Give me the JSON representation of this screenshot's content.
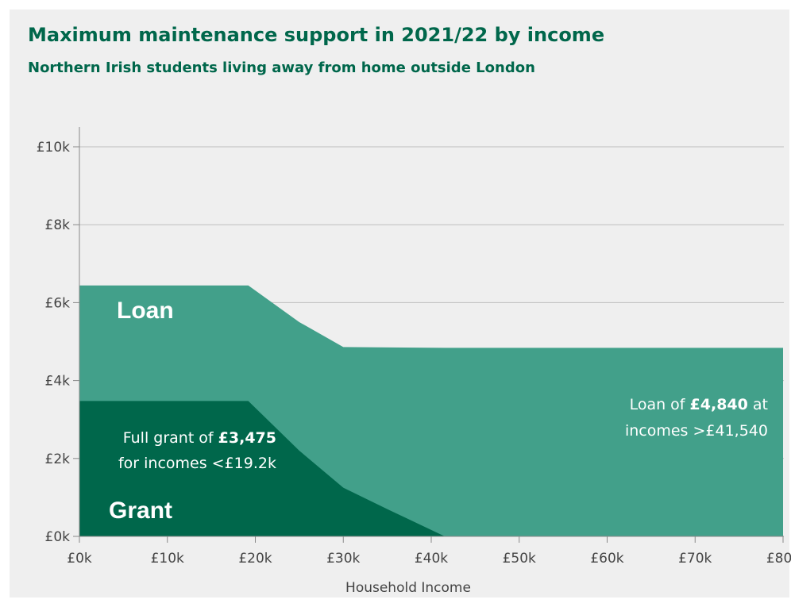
{
  "chart_data": {
    "type": "area",
    "title": "Maximum maintenance support in 2021/22 by income",
    "subtitle": "Northern Irish students living away from home outside London",
    "xlabel": "Household Income",
    "ylabel": "",
    "xlim": [
      0,
      80000
    ],
    "ylim": [
      0,
      10000
    ],
    "x_ticks": [
      {
        "value": 0,
        "label": "£0k"
      },
      {
        "value": 10000,
        "label": "£10k"
      },
      {
        "value": 20000,
        "label": "£20k"
      },
      {
        "value": 30000,
        "label": "£30k"
      },
      {
        "value": 40000,
        "label": "£40k"
      },
      {
        "value": 50000,
        "label": "£50k"
      },
      {
        "value": 60000,
        "label": "£60k"
      },
      {
        "value": 70000,
        "label": "£70k"
      },
      {
        "value": 80000,
        "label": "£80k"
      }
    ],
    "y_ticks": [
      {
        "value": 0,
        "label": "£0k"
      },
      {
        "value": 2000,
        "label": "£2k"
      },
      {
        "value": 4000,
        "label": "£4k"
      },
      {
        "value": 6000,
        "label": "£6k"
      },
      {
        "value": 8000,
        "label": "£8k"
      },
      {
        "value": 10000,
        "label": "£10k"
      }
    ],
    "grid": "horizontal",
    "series": [
      {
        "name": "Loan",
        "color": "#42a08a",
        "stacking": "total",
        "points": [
          [
            0,
            6440
          ],
          [
            19200,
            6440
          ],
          [
            25000,
            5500
          ],
          [
            30000,
            4860
          ],
          [
            41540,
            4840
          ],
          [
            80000,
            4840
          ]
        ]
      },
      {
        "name": "Grant",
        "color": "#00674b",
        "points": [
          [
            0,
            3475
          ],
          [
            19200,
            3475
          ],
          [
            25000,
            2200
          ],
          [
            30000,
            1250
          ],
          [
            35000,
            700
          ],
          [
            41540,
            0
          ]
        ]
      }
    ],
    "annotations": [
      {
        "id": "grant",
        "parts": [
          "Full grant of ",
          "£3,475",
          "for incomes <£19.2k"
        ]
      },
      {
        "id": "loan",
        "parts": [
          "Loan of ",
          "£4,840",
          " at",
          "incomes >£41,540"
        ]
      }
    ]
  }
}
